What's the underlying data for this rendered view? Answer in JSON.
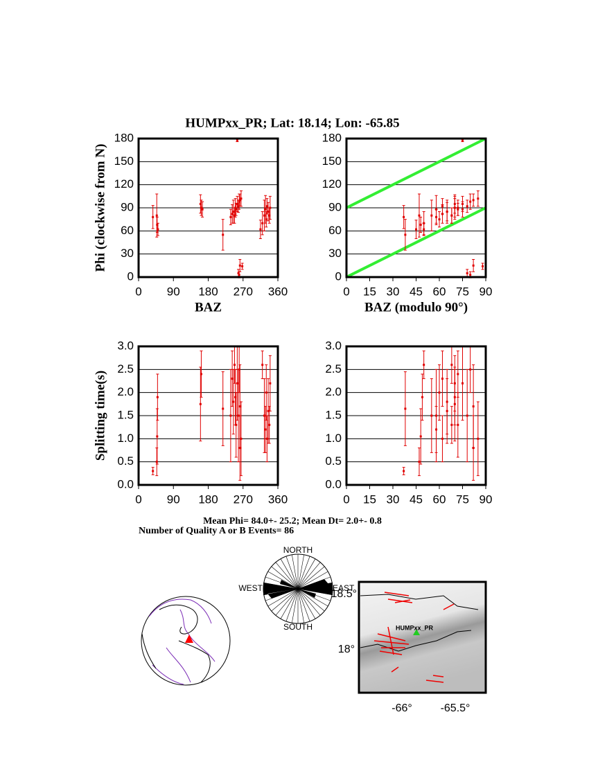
{
  "title": "HUMPxx_PR; Lat:  18.14;  Lon:  -65.85",
  "chart_data": [
    {
      "type": "scatter",
      "ylabel": "Phi (clockwise from N)",
      "xlabel": "BAZ",
      "x": [
        37,
        47,
        48,
        50,
        160,
        162,
        165,
        218,
        238,
        242,
        245,
        248,
        250,
        252,
        255,
        258,
        260,
        262,
        265,
        255,
        258,
        260,
        262,
        268,
        315,
        320,
        325,
        328,
        330,
        332,
        335,
        338,
        340
      ],
      "series": [
        {
          "color": "#e00000",
          "values": [
            78,
            80,
            68,
            62,
            95,
            90,
            88,
            55,
            78,
            82,
            85,
            80,
            90,
            88,
            95,
            92,
            98,
            100,
            102,
            178,
            5,
            3,
            15,
            14,
            62,
            70,
            80,
            88,
            75,
            92,
            85,
            80,
            90
          ],
          "errors": [
            15,
            28,
            10,
            8,
            12,
            10,
            10,
            20,
            10,
            12,
            15,
            10,
            12,
            8,
            10,
            8,
            10,
            8,
            10,
            2,
            5,
            4,
            8,
            4,
            12,
            15,
            20,
            18,
            10,
            10,
            12,
            10,
            15
          ]
        }
      ],
      "xlim": [
        0,
        360
      ],
      "xticks": [
        0,
        90,
        180,
        270,
        360
      ],
      "ylim": [
        0,
        180
      ],
      "yticks": [
        0,
        30,
        60,
        90,
        120,
        150,
        180
      ],
      "grid": true
    },
    {
      "type": "scatter",
      "xlabel": "BAZ (modulo 90°)",
      "x": [
        37,
        47,
        48,
        50,
        70,
        72,
        75,
        38,
        58,
        62,
        65,
        68,
        70,
        72,
        75,
        78,
        80,
        82,
        85,
        75,
        78,
        80,
        82,
        88,
        45,
        50,
        55,
        58,
        60,
        62,
        65,
        68,
        70
      ],
      "series": [
        {
          "color": "#e00000",
          "values": [
            78,
            80,
            68,
            62,
            95,
            90,
            88,
            55,
            78,
            82,
            85,
            80,
            90,
            88,
            95,
            92,
            98,
            100,
            102,
            178,
            5,
            3,
            15,
            14,
            62,
            70,
            80,
            88,
            75,
            92,
            85,
            80,
            90
          ],
          "errors": [
            15,
            28,
            10,
            8,
            12,
            10,
            10,
            20,
            10,
            12,
            15,
            10,
            12,
            8,
            10,
            8,
            10,
            8,
            10,
            2,
            5,
            4,
            8,
            4,
            12,
            15,
            20,
            18,
            10,
            10,
            12,
            10,
            15
          ]
        }
      ],
      "lines": [
        {
          "color": "#33ee33",
          "x": [
            0,
            90
          ],
          "y": [
            0,
            90
          ]
        },
        {
          "color": "#33ee33",
          "x": [
            0,
            90
          ],
          "y": [
            90,
            180
          ]
        }
      ],
      "xlim": [
        0,
        90
      ],
      "xticks": [
        0,
        15,
        30,
        45,
        60,
        75,
        90
      ],
      "ylim": [
        0,
        180
      ],
      "yticks": [
        0,
        30,
        60,
        90,
        120,
        150,
        180
      ],
      "grid": true
    },
    {
      "type": "scatter",
      "ylabel": "Splitting time(s)",
      "x": [
        37,
        47,
        48,
        49,
        160,
        162,
        218,
        238,
        242,
        245,
        248,
        250,
        252,
        255,
        258,
        260,
        262,
        265,
        262,
        320,
        325,
        328,
        330,
        332,
        335,
        338,
        340
      ],
      "series": [
        {
          "color": "#e00000",
          "values": [
            0.3,
            0.5,
            1.05,
            1.9,
            1.75,
            2.4,
            1.65,
            1.5,
            2.3,
            1.8,
            2.6,
            1.9,
            1.3,
            2.2,
            1.5,
            2.5,
            1.7,
            1.0,
            0.8,
            2.6,
            1.5,
            1.2,
            2.0,
            1.0,
            1.6,
            1.3,
            2.2
          ],
          "errors": [
            0.08,
            0.3,
            0.6,
            0.5,
            0.8,
            0.5,
            0.8,
            1.0,
            0.6,
            0.7,
            0.4,
            0.6,
            0.7,
            0.8,
            1.0,
            0.5,
            0.9,
            0.8,
            0.7,
            0.3,
            0.8,
            0.5,
            0.6,
            0.5,
            0.7,
            0.4,
            0.6
          ]
        }
      ],
      "xlim": [
        0,
        360
      ],
      "xticks": [
        0,
        90,
        180,
        270,
        360
      ],
      "ylim": [
        0,
        3
      ],
      "yticks": [
        {
          "value": 0,
          "label": "0.0"
        },
        0.5,
        {
          "value": 1,
          "label": "1.0"
        },
        1.5,
        {
          "value": 2,
          "label": "2.0"
        },
        2.5,
        {
          "value": 3,
          "label": "3.0"
        }
      ],
      "grid": true
    },
    {
      "type": "scatter",
      "x": [
        37,
        47,
        48,
        49,
        70,
        72,
        38,
        58,
        62,
        65,
        68,
        70,
        72,
        75,
        78,
        80,
        82,
        85,
        82,
        50,
        55,
        58,
        60,
        62,
        65,
        68,
        70
      ],
      "series": [
        {
          "color": "#e00000",
          "values": [
            0.3,
            0.5,
            1.05,
            1.9,
            1.75,
            2.4,
            1.65,
            1.5,
            2.3,
            1.8,
            2.6,
            1.9,
            1.3,
            2.2,
            1.5,
            2.5,
            1.7,
            1.0,
            0.8,
            2.6,
            1.5,
            1.2,
            2.0,
            1.0,
            1.6,
            1.3,
            2.2
          ],
          "errors": [
            0.08,
            0.3,
            0.6,
            0.5,
            0.8,
            0.5,
            0.8,
            1.0,
            0.6,
            0.7,
            0.4,
            0.6,
            0.7,
            0.8,
            1.0,
            0.5,
            0.9,
            0.8,
            0.7,
            0.3,
            0.8,
            0.5,
            0.6,
            0.5,
            0.7,
            0.4,
            0.6
          ]
        }
      ],
      "xlim": [
        0,
        90
      ],
      "xticks": [
        0,
        15,
        30,
        45,
        60,
        75,
        90
      ],
      "ylim": [
        0,
        3
      ],
      "yticks": [
        {
          "value": 0,
          "label": "0.0"
        },
        0.5,
        {
          "value": 1,
          "label": "1.0"
        },
        1.5,
        {
          "value": 2,
          "label": "2.0"
        },
        2.5,
        {
          "value": 3,
          "label": "3.0"
        }
      ],
      "grid": true
    }
  ],
  "summary": {
    "mean": "Mean Phi= 84.0+- 25.2; Mean Dt=  2.0+-  0.8",
    "count": "Number of Quality A or B Events= 86"
  },
  "rose": {
    "north": "NORTH",
    "south": "SOUTH",
    "east": "EAST",
    "west": "WEST"
  },
  "map": {
    "station": "HUMPxx_PR",
    "lat_top": "18.5°",
    "lat_bottom": "18°",
    "lon_left": "-66°",
    "lon_right": "-65.5°"
  }
}
